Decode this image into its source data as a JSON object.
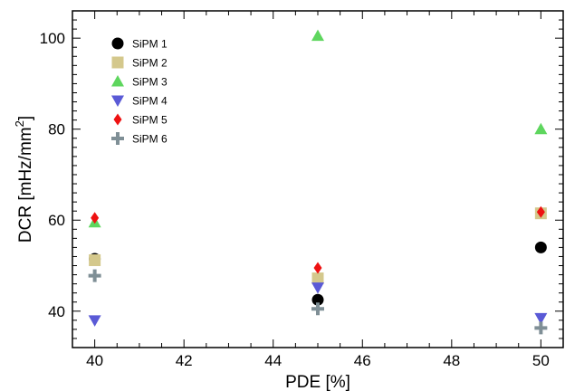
{
  "chart_data": {
    "type": "scatter",
    "title": "",
    "xlabel": "PDE [%]",
    "ylabel_main": "DCR [mHz/mm",
    "ylabel_sup": "2",
    "ylabel_close": "]",
    "xlim": [
      39.5,
      50.5
    ],
    "ylim": [
      32,
      106
    ],
    "xticks": [
      40,
      42,
      44,
      46,
      48,
      50
    ],
    "yticks": [
      40,
      60,
      80,
      100
    ],
    "grid": false,
    "legend_position": "top-left",
    "series": [
      {
        "name": "SiPM 1",
        "marker": "circle",
        "color": "#000000",
        "x": [
          40,
          45,
          50
        ],
        "y": [
          51.5,
          42.5,
          54
        ]
      },
      {
        "name": "SiPM 2",
        "marker": "square",
        "color": "#d4c88c",
        "x": [
          40,
          45,
          50
        ],
        "y": [
          51.2,
          47.2,
          61.5
        ]
      },
      {
        "name": "SiPM 3",
        "marker": "triangle-up",
        "color": "#5ed65e",
        "x": [
          40,
          45,
          50
        ],
        "y": [
          59.5,
          100.5,
          80
        ]
      },
      {
        "name": "SiPM 4",
        "marker": "triangle-down",
        "color": "#5a5ad6",
        "x": [
          40,
          45,
          50
        ],
        "y": [
          38,
          45.2,
          38.5
        ]
      },
      {
        "name": "SiPM 5",
        "marker": "diamond",
        "color": "#ee1111",
        "x": [
          40,
          45,
          50
        ],
        "y": [
          60.5,
          49.5,
          61.8
        ]
      },
      {
        "name": "SiPM 6",
        "marker": "cross",
        "color": "#7f8f96",
        "x": [
          40,
          45,
          50
        ],
        "y": [
          47.8,
          40.5,
          36.3
        ]
      }
    ]
  }
}
